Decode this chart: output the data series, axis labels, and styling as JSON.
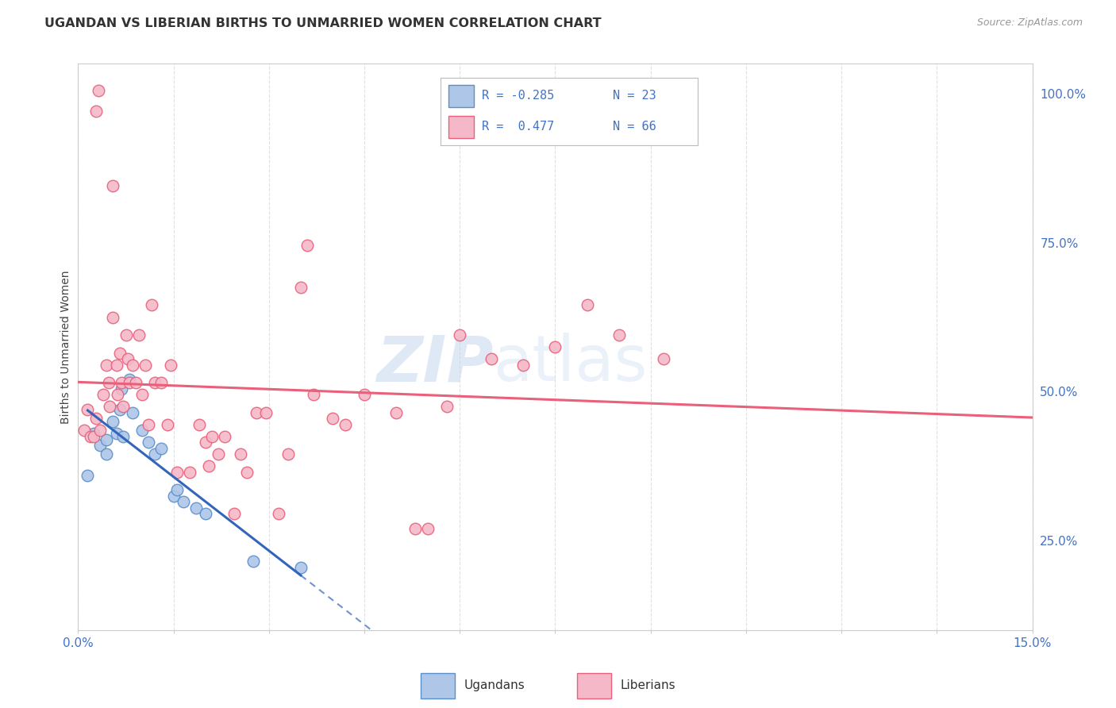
{
  "title": "UGANDAN VS LIBERIAN BIRTHS TO UNMARRIED WOMEN CORRELATION CHART",
  "source": "Source: ZipAtlas.com",
  "ylabel": "Births to Unmarried Women",
  "xlim": [
    0.0,
    15.0
  ],
  "ylim": [
    10.0,
    105.0
  ],
  "yticks_right": [
    25.0,
    50.0,
    75.0,
    100.0
  ],
  "ytick_labels_right": [
    "25.0%",
    "50.0%",
    "75.0%",
    "100.0%"
  ],
  "ugandan_color": "#aec6e8",
  "liberian_color": "#f5b8c8",
  "ugandan_edge_color": "#5b8fc9",
  "liberian_edge_color": "#e8607a",
  "ugandan_line_color": "#3366bb",
  "liberian_line_color": "#e8607a",
  "ugandan_points": [
    [
      0.15,
      36.0
    ],
    [
      0.25,
      43.0
    ],
    [
      0.35,
      41.0
    ],
    [
      0.45,
      42.0
    ],
    [
      0.45,
      39.5
    ],
    [
      0.55,
      45.0
    ],
    [
      0.6,
      43.0
    ],
    [
      0.65,
      47.0
    ],
    [
      0.68,
      50.5
    ],
    [
      0.7,
      42.5
    ],
    [
      0.8,
      52.0
    ],
    [
      0.85,
      46.5
    ],
    [
      1.0,
      43.5
    ],
    [
      1.1,
      41.5
    ],
    [
      1.2,
      39.5
    ],
    [
      1.3,
      40.5
    ],
    [
      1.5,
      32.5
    ],
    [
      1.55,
      33.5
    ],
    [
      1.65,
      31.5
    ],
    [
      1.85,
      30.5
    ],
    [
      2.0,
      29.5
    ],
    [
      2.75,
      21.5
    ],
    [
      3.5,
      20.5
    ]
  ],
  "liberian_points": [
    [
      0.1,
      43.5
    ],
    [
      0.15,
      47.0
    ],
    [
      0.2,
      42.5
    ],
    [
      0.25,
      42.5
    ],
    [
      0.28,
      45.5
    ],
    [
      0.35,
      43.5
    ],
    [
      0.4,
      49.5
    ],
    [
      0.45,
      54.5
    ],
    [
      0.48,
      51.5
    ],
    [
      0.5,
      47.5
    ],
    [
      0.55,
      62.5
    ],
    [
      0.6,
      54.5
    ],
    [
      0.62,
      49.5
    ],
    [
      0.65,
      56.5
    ],
    [
      0.68,
      51.5
    ],
    [
      0.7,
      47.5
    ],
    [
      0.75,
      59.5
    ],
    [
      0.78,
      55.5
    ],
    [
      0.8,
      51.5
    ],
    [
      0.85,
      54.5
    ],
    [
      0.9,
      51.5
    ],
    [
      0.95,
      59.5
    ],
    [
      1.0,
      49.5
    ],
    [
      1.05,
      54.5
    ],
    [
      1.1,
      44.5
    ],
    [
      1.15,
      64.5
    ],
    [
      1.2,
      51.5
    ],
    [
      1.3,
      51.5
    ],
    [
      1.4,
      44.5
    ],
    [
      1.45,
      54.5
    ],
    [
      1.55,
      36.5
    ],
    [
      1.75,
      36.5
    ],
    [
      1.9,
      44.5
    ],
    [
      2.0,
      41.5
    ],
    [
      2.05,
      37.5
    ],
    [
      2.1,
      42.5
    ],
    [
      2.2,
      39.5
    ],
    [
      2.3,
      42.5
    ],
    [
      2.45,
      29.5
    ],
    [
      2.55,
      39.5
    ],
    [
      2.65,
      36.5
    ],
    [
      2.8,
      46.5
    ],
    [
      2.95,
      46.5
    ],
    [
      3.15,
      29.5
    ],
    [
      3.3,
      39.5
    ],
    [
      3.5,
      67.5
    ],
    [
      3.7,
      49.5
    ],
    [
      4.0,
      45.5
    ],
    [
      4.2,
      44.5
    ],
    [
      4.5,
      49.5
    ],
    [
      5.0,
      46.5
    ],
    [
      5.5,
      27.0
    ],
    [
      5.8,
      47.5
    ],
    [
      6.0,
      59.5
    ],
    [
      6.5,
      55.5
    ],
    [
      7.0,
      54.5
    ],
    [
      7.5,
      57.5
    ],
    [
      8.5,
      59.5
    ],
    [
      9.2,
      55.5
    ],
    [
      0.28,
      97.0
    ],
    [
      0.32,
      100.5
    ],
    [
      0.55,
      84.5
    ],
    [
      3.6,
      74.5
    ],
    [
      5.3,
      27.0
    ],
    [
      8.0,
      64.5
    ]
  ],
  "watermark_zip": "ZIP",
  "watermark_atlas": "atlas",
  "background_color": "#ffffff",
  "grid_color": "#e0e0e0",
  "axis_color": "#cccccc",
  "tick_color": "#4472c4",
  "title_color": "#333333",
  "source_color": "#999999"
}
